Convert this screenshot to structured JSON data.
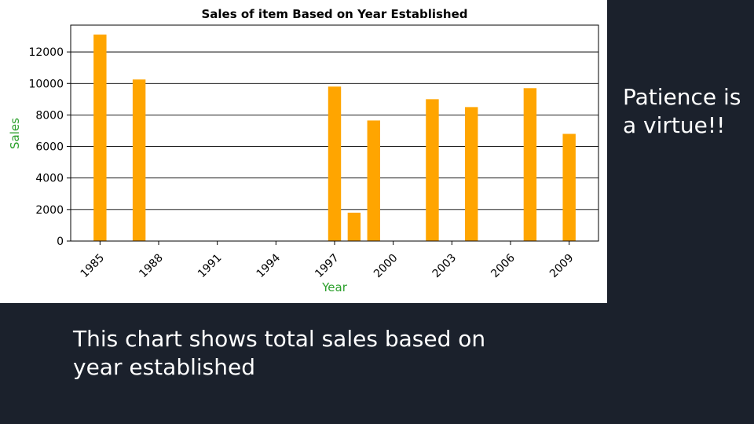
{
  "chart_data": {
    "type": "bar",
    "title": "Sales of item Based on Year Established",
    "xlabel": "Year",
    "ylabel": "Sales",
    "x": [
      1985,
      1987,
      1997,
      1998,
      1999,
      2002,
      2004,
      2007,
      2009
    ],
    "values": [
      13100,
      10250,
      9800,
      1800,
      7650,
      9000,
      8500,
      9700,
      6800
    ],
    "xticks": [
      1985,
      1988,
      1991,
      1994,
      1997,
      2000,
      2003,
      2006,
      2009
    ],
    "yticks": [
      0,
      2000,
      4000,
      6000,
      8000,
      10000,
      12000
    ],
    "xlim": [
      1983.5,
      2010.5
    ],
    "ylim": [
      0,
      13700
    ],
    "grid": "horizontal",
    "bar_color": "#ffa500",
    "label_color": "#2ca02c"
  },
  "side_note": "Patience is a virtue!!",
  "caption": "This chart shows total sales based on year established"
}
